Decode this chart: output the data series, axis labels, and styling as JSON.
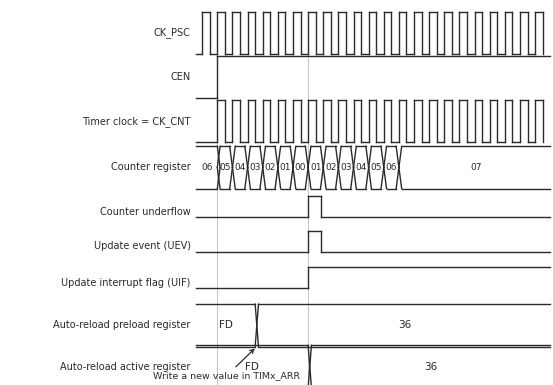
{
  "signal_names": [
    "CK_PSC",
    "CEN",
    "Timer clock = CK_CNT",
    "Counter register",
    "Counter underflow",
    "Update event (UEV)",
    "Update interrupt flag (UIF)",
    "Auto-reload preload register",
    "Auto-reload active register"
  ],
  "annotation_text": "Write a new value in TIMx_ARR",
  "fig_width": 5.53,
  "fig_height": 3.85,
  "dpi": 100,
  "bg_color": "#ffffff",
  "signal_color": "#2a2a2a",
  "label_fontsize": 7.0,
  "bus_fontsize": 6.5,
  "num_clk_cycles": 22
}
